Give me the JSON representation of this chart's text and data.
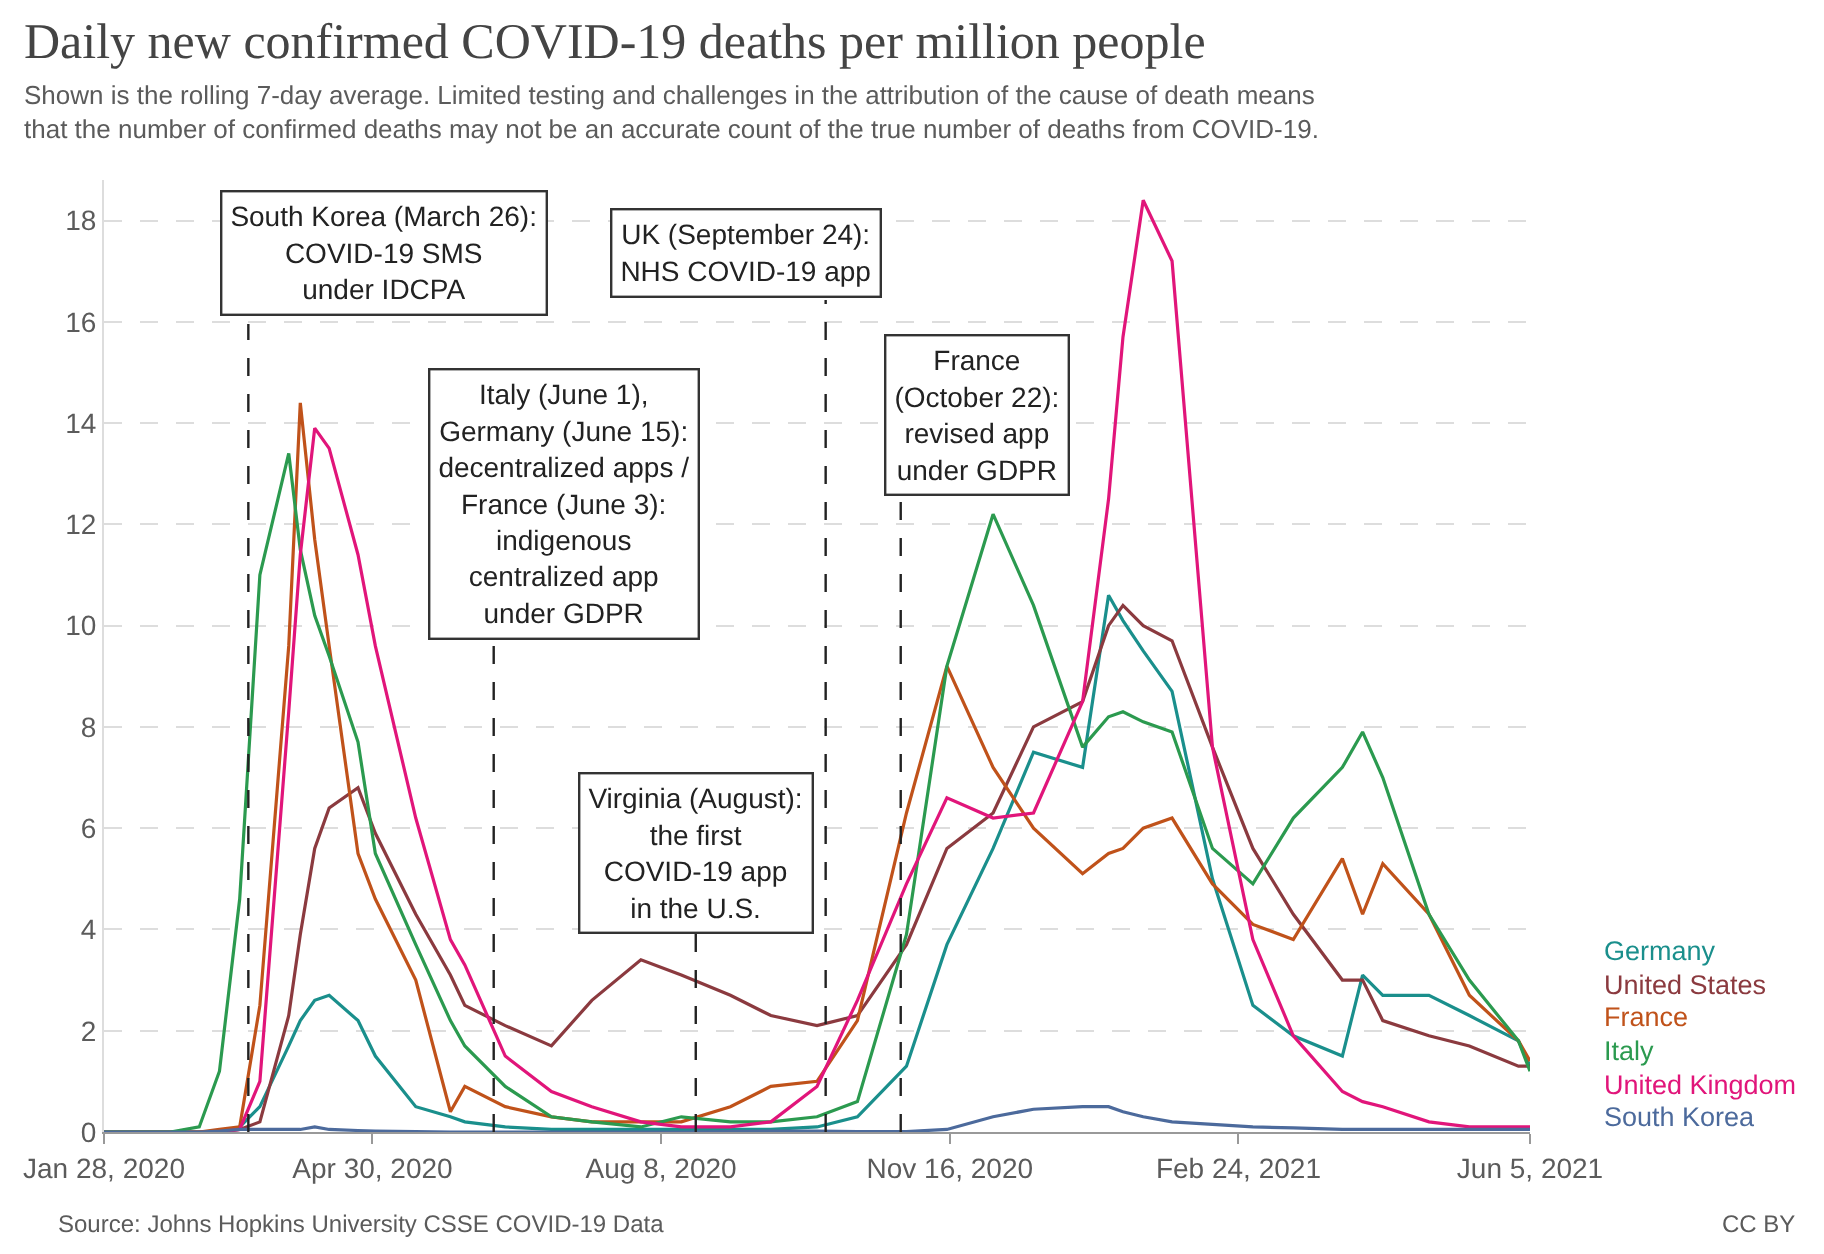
{
  "chart_data": {
    "type": "line",
    "title": "Daily new confirmed COVID-19 deaths per million people",
    "subtitle": "Shown is the rolling 7-day average. Limited testing and challenges in the attribution of the cause of death means\nthat the number of confirmed deaths may not be an accurate count of the true number of deaths from COVID-19.",
    "x": [
      "2020-01-28",
      "2020-02-20",
      "2020-03-01",
      "2020-03-08",
      "2020-03-15",
      "2020-03-22",
      "2020-04-01",
      "2020-04-05",
      "2020-04-10",
      "2020-04-15",
      "2020-04-25",
      "2020-05-01",
      "2020-05-15",
      "2020-05-27",
      "2020-06-01",
      "2020-06-15",
      "2020-07-01",
      "2020-07-15",
      "2020-08-01",
      "2020-08-15",
      "2020-09-01",
      "2020-09-15",
      "2020-10-01",
      "2020-10-15",
      "2020-11-01",
      "2020-11-15",
      "2020-12-01",
      "2020-12-15",
      "2021-01-01",
      "2021-01-10",
      "2021-01-15",
      "2021-01-22",
      "2021-02-01",
      "2021-02-15",
      "2021-03-01",
      "2021-03-15",
      "2021-04-01",
      "2021-04-08",
      "2021-04-15",
      "2021-05-01",
      "2021-05-15",
      "2021-06-01",
      "2021-06-05"
    ],
    "series": [
      {
        "name": "Germany",
        "color": "#1a8f8c",
        "values": [
          0,
          0,
          0,
          0,
          0.1,
          0.5,
          1.7,
          2.2,
          2.6,
          2.7,
          2.2,
          1.5,
          0.5,
          0.3,
          0.2,
          0.1,
          0.05,
          0.05,
          0.05,
          0.05,
          0.05,
          0.05,
          0.1,
          0.3,
          1.3,
          3.7,
          5.6,
          7.5,
          7.2,
          10.6,
          10.1,
          9.5,
          8.7,
          5.0,
          2.5,
          1.9,
          1.5,
          3.1,
          2.7,
          2.7,
          2.3,
          1.8,
          1.3
        ]
      },
      {
        "name": "United States",
        "color": "#8b3a3f",
        "values": [
          0,
          0,
          0,
          0,
          0.05,
          0.2,
          2.3,
          3.9,
          5.6,
          6.4,
          6.8,
          5.9,
          4.3,
          3.1,
          2.5,
          2.1,
          1.7,
          2.6,
          3.4,
          3.1,
          2.7,
          2.3,
          2.1,
          2.3,
          3.7,
          5.6,
          6.3,
          8.0,
          8.5,
          10.0,
          10.4,
          10.0,
          9.7,
          7.6,
          5.6,
          4.3,
          3.0,
          3.0,
          2.2,
          1.9,
          1.7,
          1.3,
          1.3
        ]
      },
      {
        "name": "France",
        "color": "#c0521a",
        "values": [
          0,
          0,
          0,
          0.05,
          0.1,
          2.5,
          9.6,
          14.4,
          11.7,
          9.6,
          5.5,
          4.6,
          3.0,
          0.4,
          0.9,
          0.5,
          0.3,
          0.2,
          0.2,
          0.2,
          0.5,
          0.9,
          1.0,
          2.2,
          6.3,
          9.2,
          7.2,
          6.0,
          5.1,
          5.5,
          5.6,
          6.0,
          6.2,
          4.9,
          4.1,
          3.8,
          5.4,
          4.3,
          5.3,
          4.3,
          2.7,
          1.8,
          1.4
        ]
      },
      {
        "name": "Italy",
        "color": "#2b9a4f",
        "values": [
          0,
          0,
          0.1,
          1.2,
          4.6,
          11.0,
          13.4,
          11.5,
          10.2,
          9.4,
          7.7,
          5.5,
          3.7,
          2.2,
          1.7,
          0.9,
          0.3,
          0.2,
          0.1,
          0.3,
          0.2,
          0.2,
          0.3,
          0.6,
          3.9,
          9.2,
          12.2,
          10.4,
          7.6,
          8.2,
          8.3,
          8.1,
          7.9,
          5.6,
          4.9,
          6.2,
          7.2,
          7.9,
          7.0,
          4.3,
          3.0,
          1.8,
          1.2
        ]
      },
      {
        "name": "United Kingdom",
        "color": "#e1157a",
        "values": [
          null,
          null,
          null,
          0,
          0.05,
          1.0,
          8.3,
          11.4,
          13.9,
          13.5,
          11.4,
          9.6,
          6.2,
          3.8,
          3.3,
          1.5,
          0.8,
          0.5,
          0.2,
          0.1,
          0.1,
          0.2,
          0.9,
          2.6,
          4.9,
          6.6,
          6.2,
          6.3,
          8.5,
          12.5,
          15.7,
          18.4,
          17.2,
          7.6,
          3.8,
          1.9,
          0.8,
          0.6,
          0.5,
          0.2,
          0.1,
          0.1,
          0.1
        ]
      },
      {
        "name": "South Korea",
        "color": "#4c6a9c",
        "values": [
          0,
          0,
          0,
          0.02,
          0.05,
          0.05,
          0.05,
          0.05,
          0.1,
          0.05,
          0.03,
          0.02,
          0.01,
          0,
          0,
          0,
          0,
          0,
          0,
          0,
          0.01,
          0.02,
          0.02,
          0.01,
          0.01,
          0.05,
          0.3,
          0.45,
          0.5,
          0.5,
          0.4,
          0.3,
          0.2,
          0.15,
          0.1,
          0.08,
          0.05,
          0.05,
          0.05,
          0.05,
          0.05,
          0.05,
          0.05
        ]
      }
    ],
    "xlim": [
      "2020-01-28",
      "2021-06-05"
    ],
    "xticks": [
      {
        "value": "2020-01-28",
        "label": "Jan 28, 2020"
      },
      {
        "value": "2020-04-30",
        "label": "Apr 30, 2020"
      },
      {
        "value": "2020-08-08",
        "label": "Aug 8, 2020"
      },
      {
        "value": "2020-11-16",
        "label": "Nov 16, 2020"
      },
      {
        "value": "2021-02-24",
        "label": "Feb 24, 2021"
      },
      {
        "value": "2021-06-05",
        "label": "Jun 5, 2021"
      }
    ],
    "ylim": [
      0,
      18.8
    ],
    "yticks": [
      0,
      2,
      4,
      6,
      8,
      10,
      12,
      14,
      16,
      18
    ],
    "grid": "y",
    "legend": false,
    "line_style": "solid",
    "ref_lines": [
      {
        "axis": "x",
        "value": "2020-03-18",
        "line_style": "dashed",
        "color": "#222222",
        "label": "South Korea (March 26):\nCOVID-19 SMS\nunder IDCPA"
      },
      {
        "axis": "x",
        "value": "2020-06-11",
        "line_style": "dashed",
        "color": "#222222",
        "label": "Italy (June 1),\nGermany (June 15):\ndecentralized apps /\nFrance (June 3):\nindigenous\ncentralized app\nunder GDPR"
      },
      {
        "axis": "x",
        "value": "2020-08-20",
        "line_style": "dashed",
        "color": "#222222",
        "label": "Virginia (August):\nthe first\nCOVID-19 app\nin the U.S."
      },
      {
        "axis": "x",
        "value": "2020-10-04",
        "line_style": "dashed",
        "color": "#222222",
        "label": "UK (September 24):\nNHS COVID-19 app"
      },
      {
        "axis": "x",
        "value": "2020-10-30",
        "line_style": "dashed",
        "color": "#222222",
        "label": "France\n(October 22):\nrevised app\nunder GDPR"
      }
    ],
    "annotations": [
      "Source: Johns Hopkins University CSSE COVID-19 Data",
      "CC BY"
    ]
  }
}
